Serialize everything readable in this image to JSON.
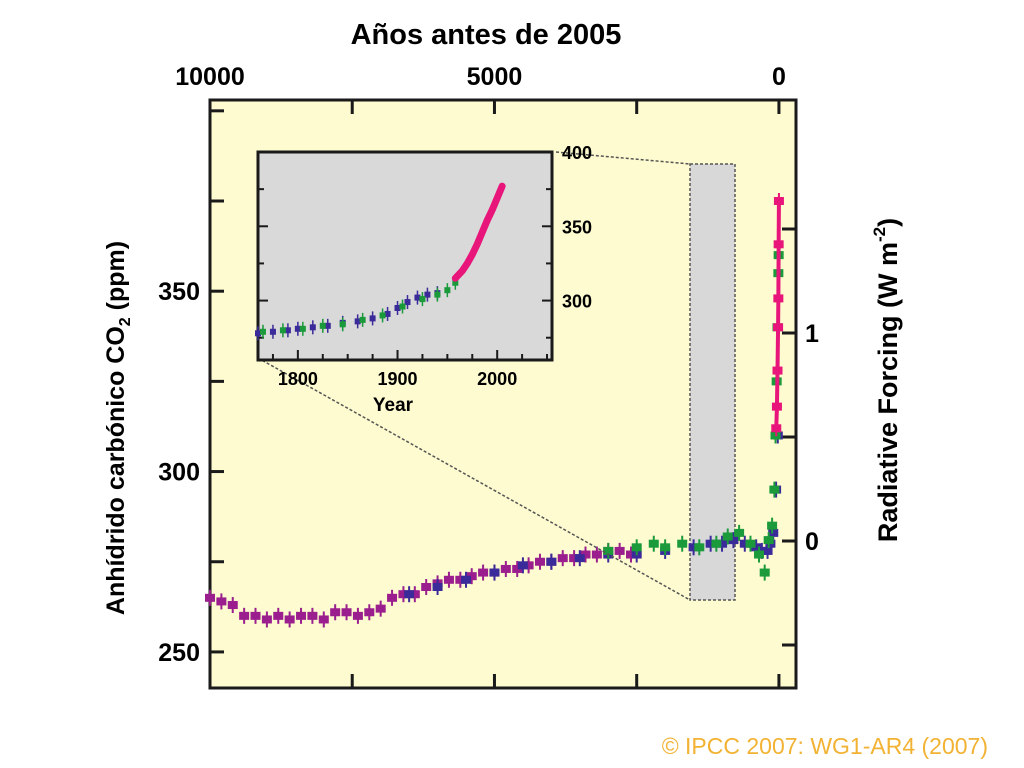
{
  "chart_data": {
    "type": "scatter",
    "title": "Años antes de 2005",
    "ylabel_main": "Anhídrido carbónico CO",
    "ylabel_sub": "2",
    "ylabel_unit": " (ppm)",
    "right_label_main": "Radiative Forcing (W m",
    "right_label_sup": "-2",
    "right_label_end": ")",
    "xlim": [
      10000,
      -300
    ],
    "ylim": [
      240,
      403
    ],
    "x_ticks": [
      {
        "v": 10000,
        "label": "10000"
      },
      {
        "v": 5000,
        "label": "5000"
      },
      {
        "v": 0,
        "label": "0"
      }
    ],
    "y_ticks": [
      {
        "v": 250,
        "label": "250"
      },
      {
        "v": 300,
        "label": "300"
      },
      {
        "v": 350,
        "label": "350"
      }
    ],
    "right_ticks": [
      {
        "v": 0,
        "label": "0"
      },
      {
        "v": 1,
        "label": "1"
      }
    ],
    "series": [
      {
        "color": "#9a1e8e",
        "points": [
          [
            10000,
            265
          ],
          [
            9800,
            264
          ],
          [
            9600,
            263
          ],
          [
            9400,
            260
          ],
          [
            9200,
            260
          ],
          [
            9000,
            259
          ],
          [
            8800,
            260
          ],
          [
            8600,
            259
          ],
          [
            8400,
            260
          ],
          [
            8200,
            260
          ],
          [
            8000,
            259
          ],
          [
            7800,
            261
          ],
          [
            7600,
            261
          ],
          [
            7400,
            260
          ],
          [
            7200,
            261
          ],
          [
            7000,
            262
          ],
          [
            6800,
            265
          ],
          [
            6600,
            266
          ],
          [
            6400,
            266
          ],
          [
            6200,
            268
          ],
          [
            6000,
            269
          ],
          [
            5800,
            270
          ],
          [
            5600,
            270
          ],
          [
            5400,
            271
          ],
          [
            5200,
            272
          ],
          [
            5000,
            272
          ],
          [
            4800,
            273
          ],
          [
            4600,
            273
          ],
          [
            4400,
            274
          ],
          [
            4200,
            275
          ],
          [
            4000,
            275
          ],
          [
            3800,
            276
          ],
          [
            3600,
            276
          ],
          [
            3400,
            277
          ],
          [
            3200,
            277
          ],
          [
            3000,
            278
          ],
          [
            2800,
            278
          ],
          [
            2600,
            277
          ]
        ]
      },
      {
        "color": "#3a2a9a",
        "points": [
          [
            6500,
            266
          ],
          [
            6000,
            268
          ],
          [
            5500,
            270
          ],
          [
            5000,
            272
          ],
          [
            4500,
            274
          ],
          [
            4000,
            275
          ],
          [
            3500,
            276
          ],
          [
            3000,
            277
          ],
          [
            2500,
            277
          ],
          [
            2000,
            278
          ],
          [
            1500,
            279
          ],
          [
            1200,
            280
          ],
          [
            1000,
            280
          ],
          [
            800,
            281
          ],
          [
            600,
            280
          ],
          [
            400,
            279
          ],
          [
            300,
            278
          ],
          [
            200,
            278
          ],
          [
            150,
            280
          ],
          [
            100,
            283
          ],
          [
            50,
            295
          ],
          [
            20,
            310
          ]
        ]
      },
      {
        "color": "#1a9a3a",
        "points": [
          [
            3000,
            278
          ],
          [
            2500,
            279
          ],
          [
            2200,
            280
          ],
          [
            2000,
            279
          ],
          [
            1700,
            280
          ],
          [
            1400,
            279
          ],
          [
            1100,
            280
          ],
          [
            900,
            282
          ],
          [
            700,
            283
          ],
          [
            500,
            280
          ],
          [
            350,
            277
          ],
          [
            250,
            272
          ],
          [
            180,
            281
          ],
          [
            120,
            285
          ],
          [
            80,
            295
          ],
          [
            60,
            310
          ],
          [
            40,
            325
          ],
          [
            25,
            340
          ],
          [
            10,
            355
          ],
          [
            5,
            360
          ]
        ]
      },
      {
        "color": "#e8157a",
        "points": [
          [
            47,
            312
          ],
          [
            35,
            318
          ],
          [
            25,
            328
          ],
          [
            15,
            340
          ],
          [
            10,
            348
          ],
          [
            5,
            363
          ],
          [
            0,
            375
          ]
        ]
      }
    ],
    "inset": {
      "xlabel": "Year",
      "xlim": [
        1760,
        2055
      ],
      "ylim": [
        260,
        400
      ],
      "x_ticks": [
        {
          "v": 1800,
          "label": "1800"
        },
        {
          "v": 1900,
          "label": "1900"
        },
        {
          "v": 2000,
          "label": "2000"
        }
      ],
      "y_ticks": [
        {
          "v": 300,
          "label": "300"
        },
        {
          "v": 350,
          "label": "350"
        },
        {
          "v": 400,
          "label": "400"
        }
      ],
      "series": [
        {
          "color": "#3a2a9a",
          "points": [
            [
              1760,
              278
            ],
            [
              1775,
              279
            ],
            [
              1790,
              280
            ],
            [
              1800,
              281
            ],
            [
              1815,
              282
            ],
            [
              1830,
              283
            ],
            [
              1845,
              285
            ],
            [
              1860,
              286
            ],
            [
              1875,
              288
            ],
            [
              1890,
              291
            ],
            [
              1900,
              295
            ],
            [
              1910,
              299
            ],
            [
              1920,
              302
            ],
            [
              1930,
              304
            ],
            [
              1940,
              305
            ]
          ]
        },
        {
          "color": "#1a9a3a",
          "points": [
            [
              1765,
              279
            ],
            [
              1785,
              280
            ],
            [
              1805,
              281
            ],
            [
              1825,
              283
            ],
            [
              1845,
              284
            ],
            [
              1865,
              287
            ],
            [
              1885,
              290
            ],
            [
              1905,
              296
            ],
            [
              1925,
              301
            ],
            [
              1940,
              304
            ],
            [
              1950,
              307
            ],
            [
              1958,
              312
            ]
          ]
        },
        {
          "color": "#e8157a",
          "points": [
            [
              1958,
              315
            ],
            [
              1965,
              320
            ],
            [
              1970,
              325
            ],
            [
              1975,
              331
            ],
            [
              1980,
              338
            ],
            [
              1985,
              346
            ],
            [
              1990,
              354
            ],
            [
              1995,
              361
            ],
            [
              2000,
              369
            ],
            [
              2005,
              377
            ]
          ]
        }
      ]
    }
  },
  "copyright": "© IPCC 2007: WG1-AR4 (2007)"
}
